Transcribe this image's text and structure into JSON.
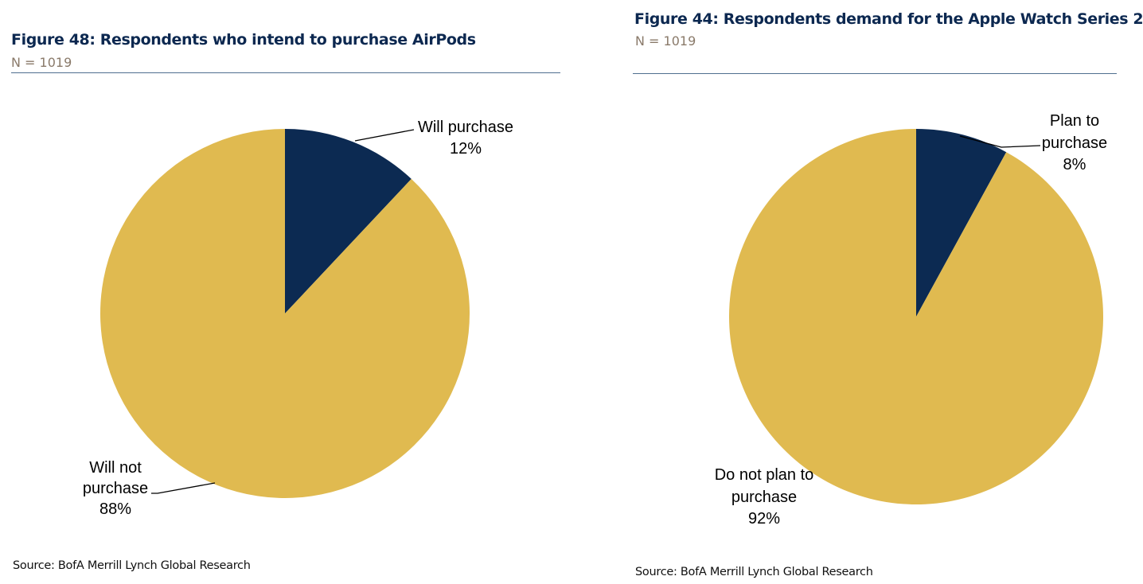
{
  "colors": {
    "navy": "#0c2a52",
    "gold": "#e0ba50",
    "title": "#0c2850",
    "rule": "#4f6f8f"
  },
  "figure48": {
    "title": "Figure 48: Respondents who intend to purchase AirPods",
    "n_label": "N = 1019",
    "source": "Source: BofA Merrill Lynch Global Research"
  },
  "figure44": {
    "title": "Figure 44: Respondents demand for the Apple Watch Series 2",
    "n_label": "N = 1019",
    "source": "Source: BofA Merrill Lynch Global Research"
  },
  "chart_data": [
    {
      "type": "pie",
      "title": "Figure 48: Respondents who intend to purchase AirPods",
      "subtitle": "N = 1019",
      "slices": [
        {
          "label": "Will purchase",
          "value": 12,
          "value_label": "12%",
          "color": "#0c2a52"
        },
        {
          "label": "Will not purchase",
          "value": 88,
          "value_label": "88%",
          "color": "#e0ba50"
        }
      ]
    },
    {
      "type": "pie",
      "title": "Figure 44: Respondents demand for the Apple Watch Series 2",
      "subtitle": "N = 1019",
      "slices": [
        {
          "label": "Plan to purchase",
          "value": 8,
          "value_label": "8%",
          "color": "#0c2a52"
        },
        {
          "label": "Do not plan to purchase",
          "value": 92,
          "value_label": "92%",
          "color": "#e0ba50"
        }
      ]
    }
  ]
}
